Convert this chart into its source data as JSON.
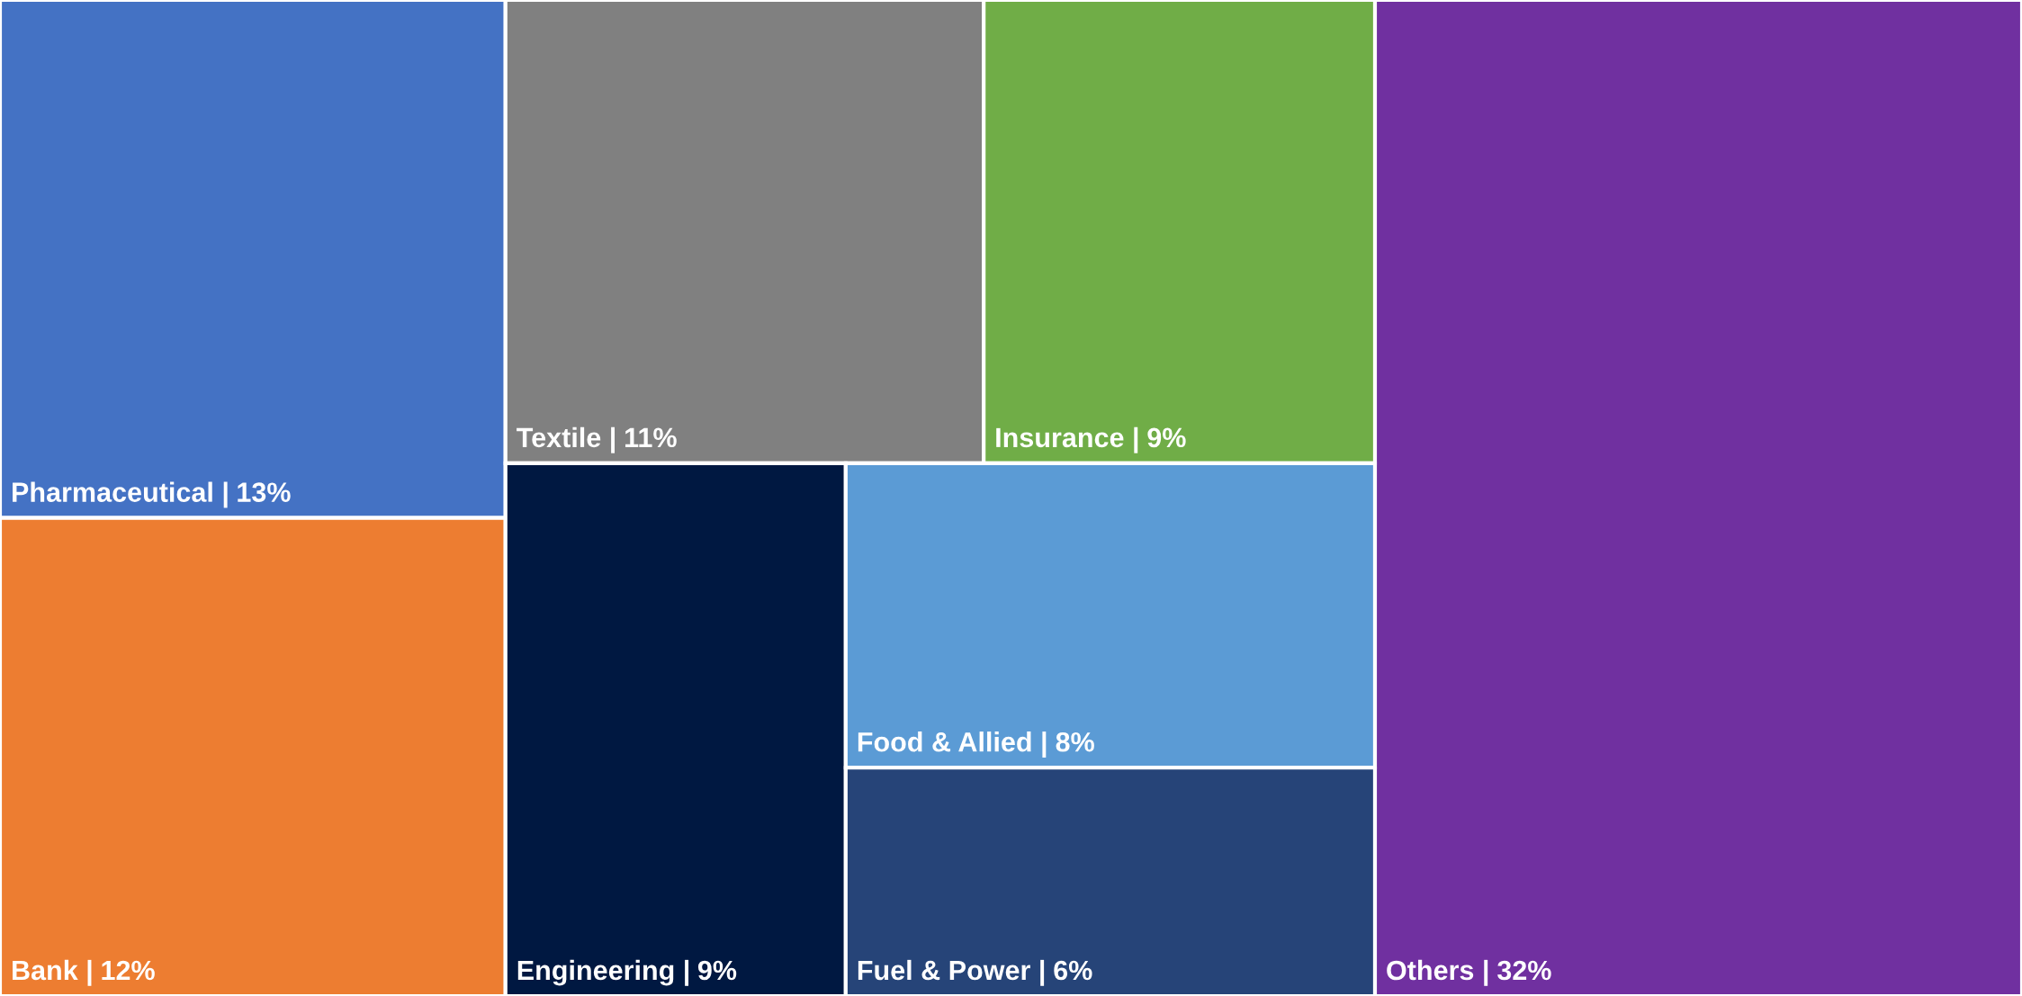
{
  "chart_data": {
    "type": "other",
    "categories": [
      "Others |",
      "Pharmaceutical |",
      "Bank |",
      "Textile |",
      "Insurance |",
      "Engineering |",
      "Food & Allied |",
      "Fuel & Power |"
    ],
    "values": [
      32,
      13,
      12,
      11,
      9,
      9,
      8,
      6
    ],
    "value_labels": [
      "32%",
      "13%",
      "12%",
      "11%",
      "9%",
      "9%",
      "8%",
      "6%"
    ],
    "colors": [
      "#7030a0",
      "#4472c4",
      "#ed7d31",
      "#808080",
      "#70ad47",
      "#001841",
      "#5b9bd5",
      "#264478"
    ],
    "data_labels": true
  }
}
